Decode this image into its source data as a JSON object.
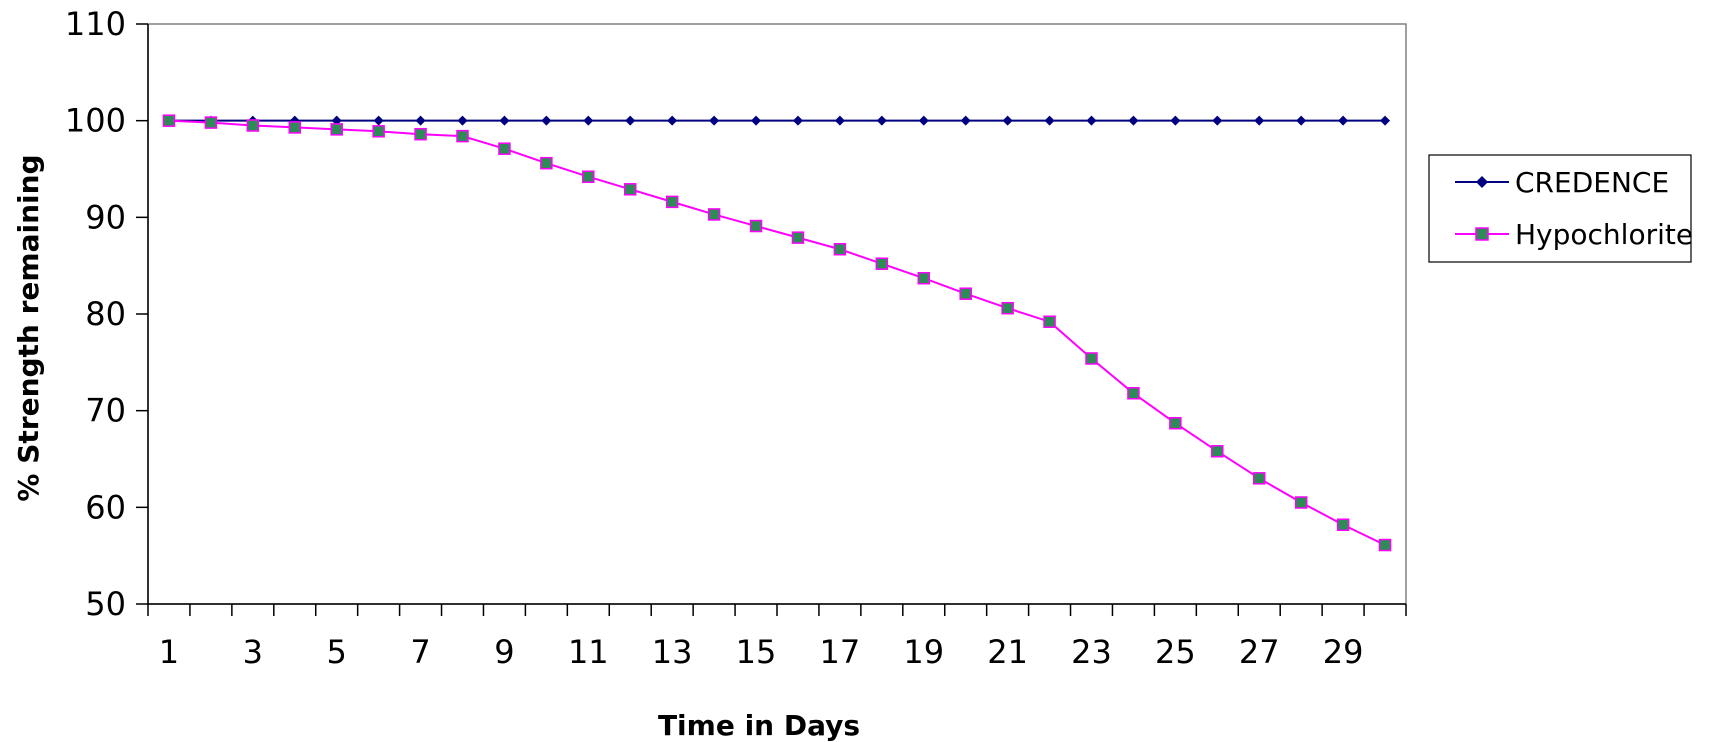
{
  "chart_data": {
    "type": "line",
    "title": "",
    "xlabel": "Time in Days",
    "ylabel": "% Strength remaining",
    "x": [
      1,
      2,
      3,
      4,
      5,
      6,
      7,
      8,
      9,
      10,
      11,
      12,
      13,
      14,
      15,
      16,
      17,
      18,
      19,
      20,
      21,
      22,
      23,
      24,
      25,
      26,
      27,
      28,
      29,
      30
    ],
    "x_tick_labels": [
      "1",
      "3",
      "5",
      "7",
      "9",
      "11",
      "13",
      "15",
      "17",
      "19",
      "21",
      "23",
      "25",
      "27",
      "29"
    ],
    "y_tick_labels": [
      "50",
      "60",
      "70",
      "80",
      "90",
      "100",
      "110"
    ],
    "ylim": [
      50,
      110
    ],
    "grid": false,
    "legend_position": "right",
    "series": [
      {
        "name": "CREDENCE",
        "color": "#000080",
        "marker": "diamond",
        "values": [
          100,
          100,
          100,
          100,
          100,
          100,
          100,
          100,
          100,
          100,
          100,
          100,
          100,
          100,
          100,
          100,
          100,
          100,
          100,
          100,
          100,
          100,
          100,
          100,
          100,
          100,
          100,
          100,
          100,
          100
        ]
      },
      {
        "name": "Hypochlorite",
        "color": "#ff00ff",
        "marker_fill": "#2e8b57",
        "marker": "square",
        "values": [
          100,
          99.8,
          99.5,
          99.3,
          99.1,
          98.9,
          98.6,
          98.4,
          97.1,
          95.6,
          94.2,
          92.9,
          91.6,
          90.3,
          89.1,
          87.9,
          86.7,
          85.2,
          83.7,
          82.1,
          80.6,
          79.2,
          75.4,
          71.8,
          68.7,
          65.8,
          63.0,
          60.5,
          58.2,
          56.1
        ]
      }
    ]
  }
}
